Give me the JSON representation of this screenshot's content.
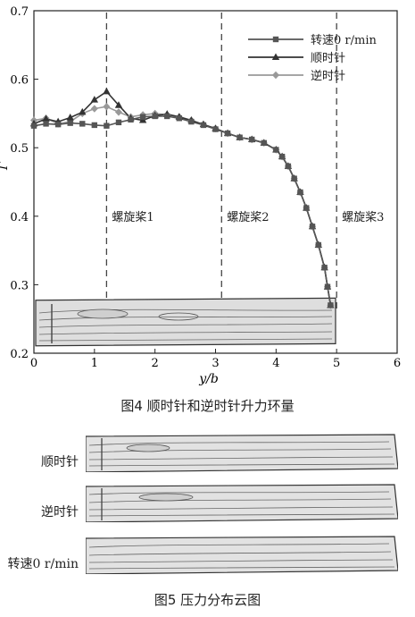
{
  "figure4": {
    "caption": "图4   顺时针和逆时针升力环量",
    "chart_data": {
      "type": "line",
      "xlabel": "y/b",
      "ylabel": "Γ",
      "xlim": [
        0,
        6
      ],
      "ylim": [
        0.2,
        0.7
      ],
      "xticks": [
        "0",
        "1",
        "2",
        "3",
        "4",
        "5",
        "6"
      ],
      "yticks": [
        "0.2",
        "0.3",
        "0.4",
        "0.5",
        "0.6",
        "0.7"
      ],
      "legend_position": "top-right",
      "annotations": [
        {
          "text": "螺旋桨1",
          "x": 1.2
        },
        {
          "text": "螺旋桨2",
          "x": 3.1
        },
        {
          "text": "螺旋桨3",
          "x": 5.0
        }
      ],
      "x": [
        0,
        0.2,
        0.4,
        0.6,
        0.8,
        1.0,
        1.2,
        1.4,
        1.6,
        1.8,
        2.0,
        2.2,
        2.4,
        2.6,
        2.8,
        3.0,
        3.2,
        3.4,
        3.6,
        3.8,
        4.0,
        4.1,
        4.2,
        4.3,
        4.4,
        4.5,
        4.6,
        4.7,
        4.8,
        4.85,
        4.9
      ],
      "series": [
        {
          "name": "转速0 r/min",
          "marker": "square",
          "color": "#555555",
          "values": [
            0.532,
            0.535,
            0.534,
            0.536,
            0.535,
            0.533,
            0.532,
            0.537,
            0.541,
            0.545,
            0.546,
            0.546,
            0.543,
            0.538,
            0.533,
            0.527,
            0.521,
            0.515,
            0.512,
            0.507,
            0.497,
            0.487,
            0.473,
            0.455,
            0.435,
            0.412,
            0.385,
            0.358,
            0.325,
            0.297,
            0.27
          ]
        },
        {
          "name": "顺时针",
          "marker": "triangle",
          "color": "#333333",
          "values": [
            0.535,
            0.542,
            0.538,
            0.544,
            0.552,
            0.57,
            0.582,
            0.562,
            0.543,
            0.54,
            0.547,
            0.549,
            0.545,
            0.54,
            0.534,
            0.528,
            0.521,
            0.515,
            0.512,
            0.507,
            0.497,
            0.487,
            0.473,
            0.455,
            0.435,
            0.412,
            0.385,
            0.358,
            0.325,
            0.297,
            0.27
          ]
        },
        {
          "name": "逆时针",
          "marker": "diamond",
          "color": "#999999",
          "values": [
            0.54,
            0.543,
            0.535,
            0.538,
            0.55,
            0.557,
            0.56,
            0.552,
            0.545,
            0.548,
            0.55,
            0.548,
            0.545,
            0.54,
            0.534,
            0.528,
            0.521,
            0.515,
            0.512,
            0.507,
            0.497,
            0.487,
            0.473,
            0.455,
            0.435,
            0.412,
            0.385,
            0.358,
            0.325,
            0.297,
            0.27
          ]
        }
      ]
    }
  },
  "figure5": {
    "caption": "图5   压力分布云图",
    "rows": [
      "顺时针",
      "逆时针",
      "转速0 r/min"
    ]
  },
  "colors": {
    "axis": "#222222",
    "contour_fill": "#e2e2e2",
    "contour_line": "#6a6a6a"
  }
}
